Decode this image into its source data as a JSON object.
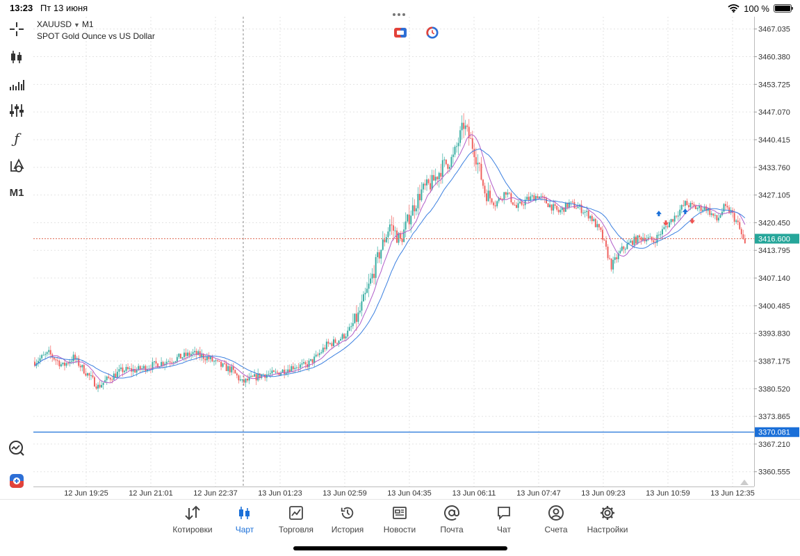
{
  "status_bar": {
    "time": "13:23",
    "date": "Пт 13 июня",
    "battery": "100 %"
  },
  "symbol": {
    "name": "XAUUSD",
    "timeframe": "M1",
    "description": "SPOT Gold Ounce vs US Dollar"
  },
  "toolbar": {
    "timeframe_button": "M1",
    "function_symbol": "ƒ"
  },
  "colors": {
    "bull": "#26a69a",
    "bear": "#ef5350",
    "ma_fast": "#b05cc8",
    "ma_slow": "#3a7fe0",
    "bid_line": "#e06b55",
    "bid_badge": "#26a69a",
    "level_line": "#1a6fd8",
    "accent": "#1a6fd8"
  },
  "chart_data": {
    "type": "candlestick",
    "y_axis_labels": [
      "3467.035",
      "3460.380",
      "3453.725",
      "3447.070",
      "3440.415",
      "3433.760",
      "3427.105",
      "3420.450",
      "3413.795",
      "3407.140",
      "3400.485",
      "3393.830",
      "3387.175",
      "3380.520",
      "3373.865",
      "3367.210",
      "3360.555"
    ],
    "x_axis_labels": [
      "12 Jun 19:25",
      "12 Jun 21:01",
      "12 Jun 22:37",
      "13 Jun 01:23",
      "13 Jun 02:59",
      "13 Jun 04:35",
      "13 Jun 06:11",
      "13 Jun 07:47",
      "13 Jun 09:23",
      "13 Jun 10:59",
      "13 Jun 12:35"
    ],
    "ylim": [
      3357.0,
      3470.0
    ],
    "current_price": "3416.600",
    "level_price": "3370.081",
    "crosshair_x_label": "12 Jun 22:37",
    "price_path": [
      [
        0,
        3387
      ],
      [
        8,
        3389
      ],
      [
        16,
        3386
      ],
      [
        22,
        3388
      ],
      [
        30,
        3384
      ],
      [
        36,
        3381
      ],
      [
        42,
        3383
      ],
      [
        50,
        3385
      ],
      [
        58,
        3385
      ],
      [
        66,
        3386
      ],
      [
        74,
        3387
      ],
      [
        82,
        3388
      ],
      [
        90,
        3389
      ],
      [
        98,
        3388
      ],
      [
        106,
        3386
      ],
      [
        112,
        3385
      ],
      [
        118,
        3382
      ],
      [
        124,
        3383
      ],
      [
        130,
        3384
      ],
      [
        136,
        3384
      ],
      [
        142,
        3385
      ],
      [
        148,
        3386
      ],
      [
        154,
        3386
      ],
      [
        160,
        3388
      ],
      [
        166,
        3391
      ],
      [
        172,
        3392
      ],
      [
        178,
        3394
      ],
      [
        184,
        3398
      ],
      [
        190,
        3405
      ],
      [
        196,
        3413
      ],
      [
        202,
        3420
      ],
      [
        208,
        3416
      ],
      [
        214,
        3423
      ],
      [
        220,
        3428
      ],
      [
        226,
        3430
      ],
      [
        232,
        3434
      ],
      [
        238,
        3436
      ],
      [
        244,
        3444
      ],
      [
        250,
        3438
      ],
      [
        256,
        3428
      ],
      [
        262,
        3425
      ],
      [
        268,
        3428
      ],
      [
        274,
        3424
      ],
      [
        280,
        3426
      ],
      [
        286,
        3427
      ],
      [
        292,
        3425
      ],
      [
        298,
        3423
      ],
      [
        304,
        3425
      ],
      [
        310,
        3424
      ],
      [
        316,
        3422
      ],
      [
        322,
        3418
      ],
      [
        328,
        3410
      ],
      [
        334,
        3414
      ],
      [
        340,
        3416
      ],
      [
        346,
        3417
      ],
      [
        352,
        3416
      ],
      [
        358,
        3419
      ],
      [
        364,
        3422
      ],
      [
        370,
        3425
      ],
      [
        376,
        3424
      ],
      [
        382,
        3424
      ],
      [
        388,
        3421
      ],
      [
        392,
        3424
      ],
      [
        396,
        3423
      ],
      [
        400,
        3420
      ],
      [
        404,
        3415
      ]
    ],
    "series": [
      {
        "name": "MA fast",
        "color_key": "ma_fast"
      },
      {
        "name": "MA slow",
        "color_key": "ma_slow"
      }
    ],
    "signal_arrows": [
      {
        "x": 355,
        "price": 3422.5,
        "dir": "up"
      },
      {
        "x": 359,
        "price": 3420.5,
        "dir": "down"
      },
      {
        "x": 370,
        "price": 3423.0,
        "dir": "up"
      },
      {
        "x": 374,
        "price": 3421.0,
        "dir": "down"
      }
    ],
    "grid": true
  },
  "tabs": [
    {
      "id": "quotes",
      "label": "Котировки",
      "active": false
    },
    {
      "id": "chart",
      "label": "Чарт",
      "active": true
    },
    {
      "id": "trade",
      "label": "Торговля",
      "active": false
    },
    {
      "id": "history",
      "label": "История",
      "active": false
    },
    {
      "id": "news",
      "label": "Новости",
      "active": false
    },
    {
      "id": "mail",
      "label": "Почта",
      "active": false
    },
    {
      "id": "chat",
      "label": "Чат",
      "active": false
    },
    {
      "id": "accounts",
      "label": "Счета",
      "active": false
    },
    {
      "id": "settings",
      "label": "Настройки",
      "active": false
    }
  ]
}
